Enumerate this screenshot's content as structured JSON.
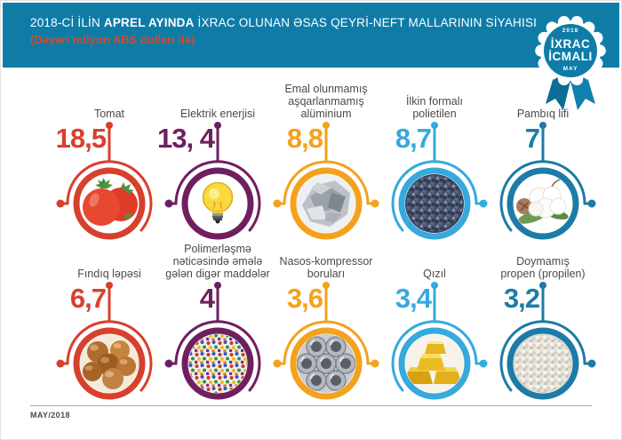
{
  "header": {
    "title_prefix": "2018-Cİ İLİN ",
    "title_bold": "APREL AYINDA",
    "title_suffix": " İXRAC OLUNAN ƏSAS QEYRİ-NEFT MALLARININ SİYAHISI",
    "subtitle": "(Dəyəri milyon ABŞ dolları ilə)",
    "bar_color": "#0f7ca8",
    "subtitle_color": "#d04a2e"
  },
  "badge": {
    "year": "2018",
    "line1": "İXRAC",
    "line2": "İCMALI",
    "month": "MAY",
    "seal_color": "#0f7ca8",
    "ribbon_left_color": "#0c6d96",
    "ribbon_right_color": "#1180ac"
  },
  "footer": {
    "date": "MAY/2018"
  },
  "items": [
    {
      "label": "Tomat",
      "value": "18,5",
      "color": "#d7402d",
      "icon": "tomatoes-icon",
      "connector": "left"
    },
    {
      "label": "Elektrik enerjisi",
      "value": "13, 4",
      "color": "#6f1f5f",
      "icon": "light-bulb-icon",
      "connector": "left"
    },
    {
      "label": "Emal olunmamış\naşqarlanmamış\nalüminium",
      "value": "8,8",
      "color": "#f4a11d",
      "icon": "aluminium-icon",
      "connector": "both"
    },
    {
      "label": "İlkin formalı\npolietilen",
      "value": "8,7",
      "color": "#36a9dd",
      "icon": "polyethylene-granules-icon",
      "connector": "right"
    },
    {
      "label": "Pambıq lifi",
      "value": "7",
      "color": "#1d7ba7",
      "icon": "cotton-icon",
      "connector": "right"
    },
    {
      "label": "Fındıq ləpəsi",
      "value": "6,7",
      "color": "#d7402d",
      "icon": "hazelnuts-icon",
      "connector": "left"
    },
    {
      "label": "Polimerləşmə\nnəticəsində əmələ\ngələn digər maddələr",
      "value": "4",
      "color": "#6f1f5f",
      "icon": "polymer-granules-icon",
      "connector": "left"
    },
    {
      "label": "Nasos-kompressor\nboruları",
      "value": "3,6",
      "color": "#f4a11d",
      "icon": "pipes-icon",
      "connector": "both"
    },
    {
      "label": "Qızıl",
      "value": "3,4",
      "color": "#36a9dd",
      "icon": "gold-bars-icon",
      "connector": "right"
    },
    {
      "label": "Doymamış\npropen (propilen)",
      "value": "3,2",
      "color": "#1d7ba7",
      "icon": "propylene-granules-icon",
      "connector": "right"
    }
  ],
  "chart_data": {
    "type": "bar",
    "title": "2018-ci ilin aprel ayında ixrac olunan əsas qeyri-neft mallarının siyahısı",
    "subtitle": "Dəyəri milyon ABŞ dolları ilə",
    "unit": "milyon ABŞ dolları",
    "categories": [
      "Tomat",
      "Elektrik enerjisi",
      "Emal olunmamış aşqarlanmamış alüminium",
      "İlkin formalı polietilen",
      "Pambıq lifi",
      "Fındıq ləpəsi",
      "Polimerləşmə nəticəsində əmələ gələn digər maddələr",
      "Nasos-kompressor boruları",
      "Qızıl",
      "Doymamış propen (propilen)"
    ],
    "values": [
      18.5,
      13.4,
      8.8,
      8.7,
      7,
      6.7,
      4,
      3.6,
      3.4,
      3.2
    ],
    "legend_position": "none",
    "grid": false,
    "source_note": "MAY/2018"
  }
}
